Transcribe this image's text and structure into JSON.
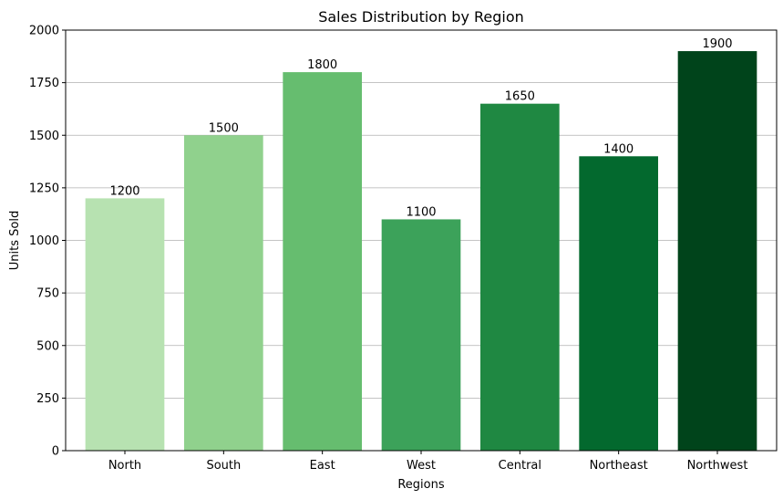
{
  "chart_data": {
    "type": "bar",
    "title": "Sales Distribution by Region",
    "xlabel": "Regions",
    "ylabel": "Units Sold",
    "categories": [
      "North",
      "South",
      "East",
      "West",
      "Central",
      "Northeast",
      "Northwest"
    ],
    "values": [
      1200,
      1500,
      1800,
      1100,
      1650,
      1400,
      1900
    ],
    "data_labels": [
      "1200",
      "1500",
      "1800",
      "1100",
      "1650",
      "1400",
      "1900"
    ],
    "colors": [
      "#b7e2b1",
      "#90d18d",
      "#66bd6f",
      "#3ca25a",
      "#1f8842",
      "#03692e",
      "#00441b"
    ],
    "ylim": [
      0,
      2000
    ],
    "yticks": [
      0,
      250,
      500,
      750,
      1000,
      1250,
      1500,
      1750,
      2000
    ],
    "ytick_labels": [
      "0",
      "250",
      "500",
      "750",
      "1000",
      "1250",
      "1500",
      "1750",
      "2000"
    ],
    "grid": "horizontal",
    "grid_color": "#b0b0b0",
    "legend": "none"
  }
}
